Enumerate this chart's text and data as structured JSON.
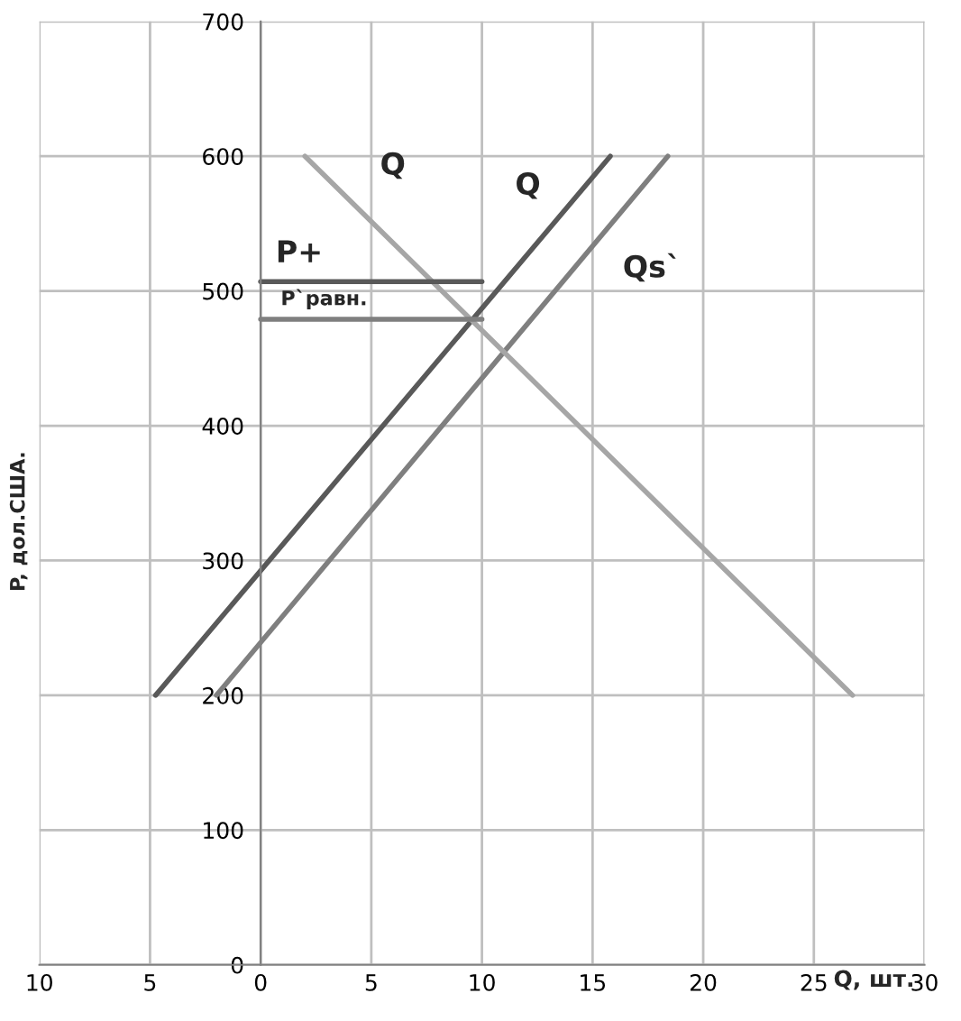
{
  "chart_data": {
    "type": "line",
    "xlabel": "Q, шт.",
    "ylabel": "P, дол.США.",
    "series": [
      {
        "name": "Q",
        "x": [
          -4.75,
          15.8
        ],
        "values": [
          200,
          600
        ],
        "color": "#595959"
      },
      {
        "name": "Qs`",
        "x": [
          -2,
          18.4
        ],
        "values": [
          200,
          600
        ],
        "color": "#7f7f7f"
      },
      {
        "name": "Q",
        "x": [
          2,
          26.75
        ],
        "values": [
          600,
          200
        ],
        "color": "#a6a6a6"
      },
      {
        "name": "P+",
        "x": [
          0,
          10
        ],
        "values": [
          507,
          507
        ],
        "color": "#595959"
      },
      {
        "name": "P`равн.",
        "x": [
          0,
          10
        ],
        "values": [
          479,
          479
        ],
        "color": "#7f7f7f"
      }
    ],
    "xlim": [
      -10,
      30
    ],
    "xticks": [
      {
        "value": -10,
        "label": "10"
      },
      {
        "value": -5,
        "label": "5"
      },
      0,
      5,
      10,
      15,
      20,
      25,
      30
    ],
    "ylim": [
      0,
      700
    ],
    "yticks": [
      0,
      100,
      200,
      300,
      400,
      500,
      600,
      700
    ],
    "grid": true,
    "marker": "none",
    "line_style": "solid"
  }
}
